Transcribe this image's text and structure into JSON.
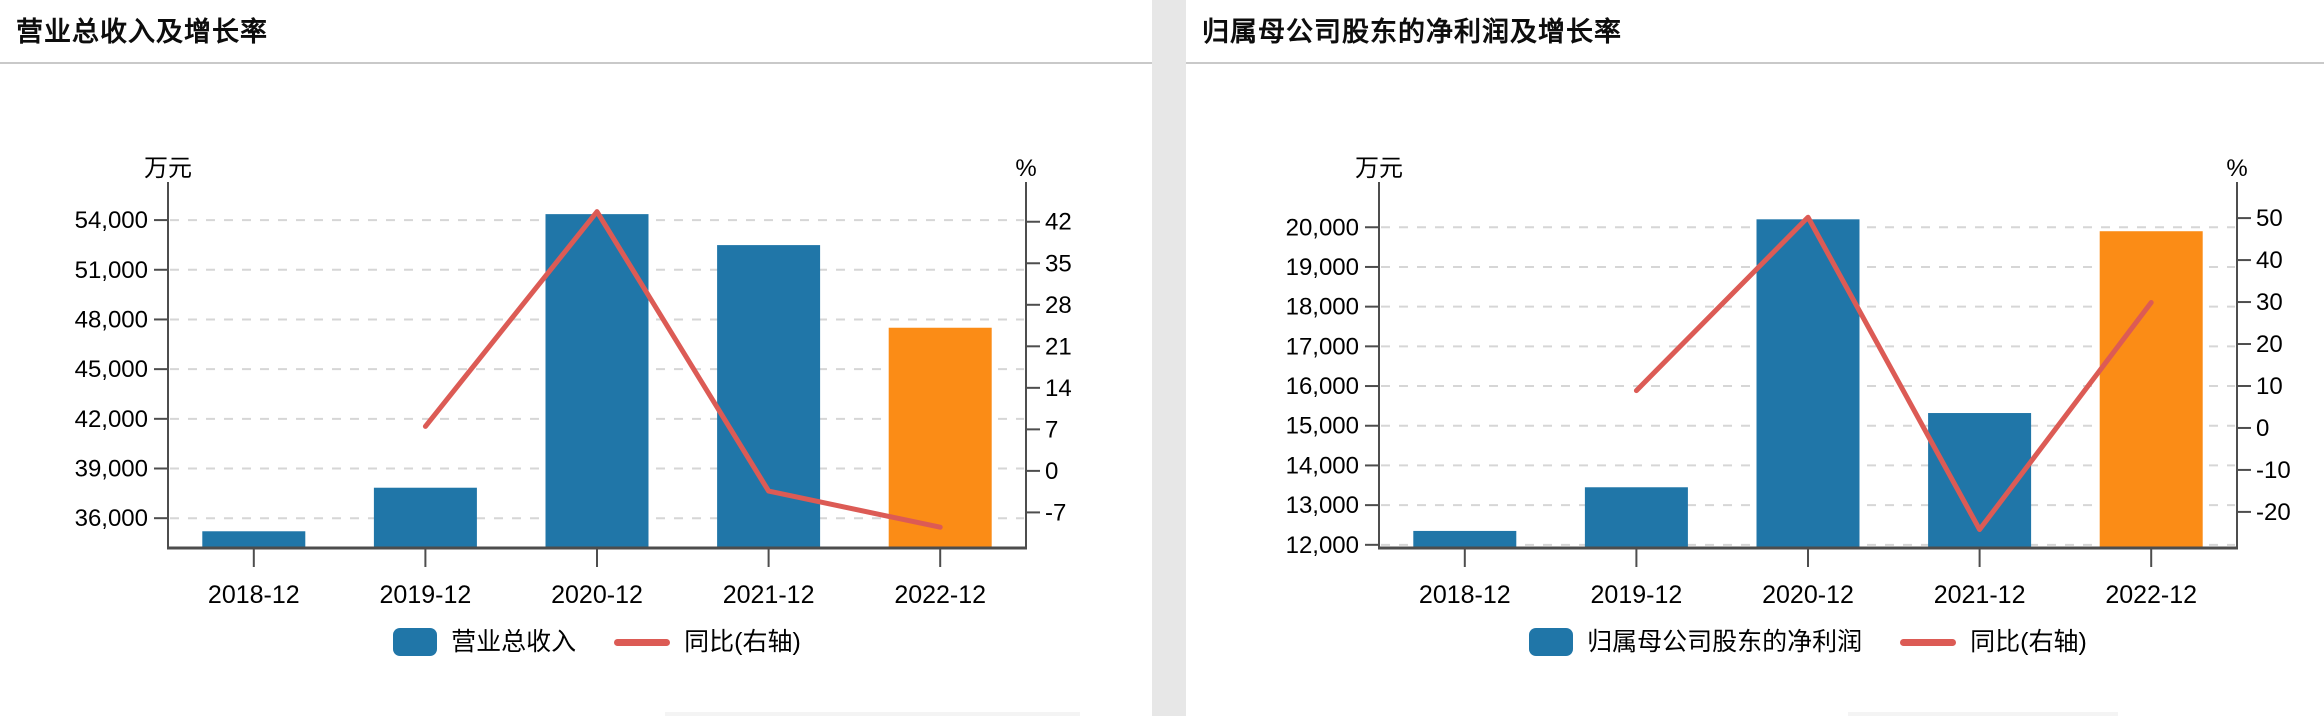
{
  "page": {
    "background": "#ffffff",
    "divider_color": "#e7e7e7",
    "grid_color": "#d6d6d6",
    "axis_color": "#4d4d4d"
  },
  "chart_data": [
    {
      "type": "bar+line",
      "title": "营业总收入及增长率",
      "categories": [
        "2018-12",
        "2019-12",
        "2020-12",
        "2021-12",
        "2022-12"
      ],
      "left_axis": {
        "unit": "万元",
        "tick_labels": [
          "54,000",
          "51,000",
          "48,000",
          "45,000",
          "42,000",
          "39,000",
          "36,000"
        ],
        "tick_values": [
          54000,
          51000,
          48000,
          45000,
          42000,
          39000,
          36000
        ],
        "ylim": [
          34200,
          56300
        ],
        "grid": "dashed"
      },
      "right_axis": {
        "unit": "%",
        "tick_labels": [
          "42",
          "35",
          "28",
          "21",
          "14",
          "7",
          "0",
          "-7"
        ],
        "tick_values": [
          42,
          35,
          28,
          21,
          14,
          7,
          0,
          -7
        ],
        "ylim": [
          -13,
          48.7
        ]
      },
      "series": [
        {
          "type": "bar",
          "axis": "left",
          "name": "营业总收入",
          "values": [
            35210,
            37840,
            54360,
            52490,
            47500
          ],
          "color": "#2076a8",
          "last_bar_color": "#fb8c16"
        },
        {
          "type": "line",
          "axis": "right",
          "name": "同比(右轴)",
          "values": [
            null,
            7.5,
            43.7,
            -3.4,
            -9.5
          ],
          "color": "#dc5b55"
        }
      ],
      "legend_position": "bottom-center"
    },
    {
      "type": "bar+line",
      "title": "归属母公司股东的净利润及增长率",
      "categories": [
        "2018-12",
        "2019-12",
        "2020-12",
        "2021-12",
        "2022-12"
      ],
      "left_axis": {
        "unit": "万元",
        "tick_labels": [
          "20,000",
          "19,000",
          "18,000",
          "17,000",
          "16,000",
          "15,000",
          "14,000",
          "13,000",
          "12,000"
        ],
        "tick_values": [
          20000,
          19000,
          18000,
          17000,
          16000,
          15000,
          14000,
          13000,
          12000
        ],
        "ylim": [
          11920,
          21140
        ],
        "grid": "dashed"
      },
      "right_axis": {
        "unit": "%",
        "tick_labels": [
          "50",
          "40",
          "30",
          "20",
          "10",
          "0",
          "-10",
          "-20"
        ],
        "tick_values": [
          50,
          40,
          30,
          20,
          10,
          0,
          -10,
          -20
        ],
        "ylim": [
          -28.6,
          58.6
        ]
      },
      "series": [
        {
          "type": "bar",
          "axis": "left",
          "name": "归属母公司股东的净利润",
          "values": [
            12350,
            13450,
            20200,
            15320,
            19900
          ],
          "color": "#2076a8",
          "last_bar_color": "#fb8c16"
        },
        {
          "type": "line",
          "axis": "right",
          "name": "同比(右轴)",
          "values": [
            null,
            8.9,
            50.2,
            -24.2,
            29.9
          ],
          "color": "#dc5b55"
        }
      ],
      "legend_position": "bottom-center"
    }
  ]
}
